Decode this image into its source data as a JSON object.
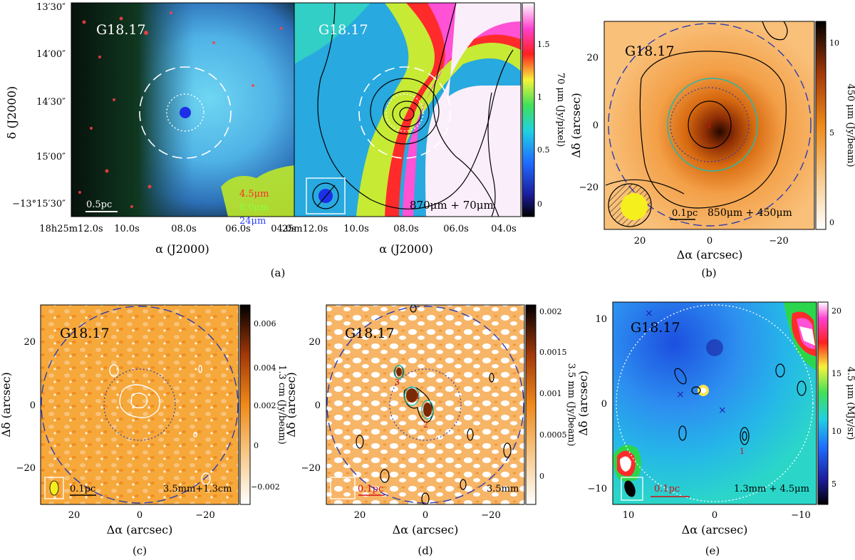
{
  "figure": {
    "panels": [
      {
        "id": "a",
        "caption": "(a)",
        "left_image": {
          "source_label": "G18.17",
          "bands": [
            "4.5μm",
            "8.0μm",
            "24μm"
          ],
          "band_colors": [
            "#ff2b2b",
            "#8cff3c",
            "#2b3dff"
          ],
          "scalebar": "0.5pc",
          "y_ticks": [
            "13′30″",
            "14′00″",
            "14′30″",
            "15′00″",
            "−13°15′30″"
          ],
          "x_ticks": [
            "18h25m12.0s",
            "10.0s",
            "08.0s",
            "06.0s",
            "04.0s"
          ],
          "ylabel": "δ (J2000)",
          "xlabel": "α (J2000)"
        },
        "right_image": {
          "source_label": "G18.17",
          "overlay_label": "870μm + 70μm",
          "x_ticks": [
            "25m12.0s",
            "10.0s",
            "08.0s",
            "06.0s",
            "04.0s"
          ],
          "colorbar_ticks": [
            "1.5",
            "1",
            "0.5",
            "0"
          ],
          "colorbar_label": "70 μm (Jy/pixel)"
        }
      },
      {
        "id": "b",
        "caption": "(b)",
        "source_label": "G18.17",
        "overlay_label": "850μm + 450μm",
        "scalebar": "0.1pc",
        "marker": "1",
        "x_ticks": [
          "20",
          "0",
          "−20"
        ],
        "y_ticks": [
          "20",
          "0",
          "−20"
        ],
        "xlabel": "Δα (arcsec)",
        "ylabel": "Δδ (arcsec)",
        "colorbar_ticks": [
          "10",
          "5",
          "0"
        ],
        "colorbar_label": "450 μm (Jy/beam)"
      },
      {
        "id": "c",
        "caption": "(c)",
        "source_label": "G18.17",
        "overlay_label": "3.5mm+1.3cm",
        "scalebar": "0.1pc",
        "x_ticks": [
          "20",
          "0",
          "−20"
        ],
        "y_ticks": [
          "20",
          "0",
          "−20"
        ],
        "xlabel": "Δα (arcsec)",
        "ylabel": "Δδ (arcsec)",
        "colorbar_ticks": [
          "0.006",
          "0.004",
          "0.002",
          "0",
          "−0.002"
        ],
        "colorbar_label": "1.3 cm (Jy/beam)"
      },
      {
        "id": "d",
        "caption": "(d)",
        "source_label": "G18.17",
        "overlay_label": "3.5mm",
        "scalebar": "0.1pc",
        "markers": [
          "1",
          "2",
          "3"
        ],
        "x_ticks": [
          "20",
          "0",
          "−20"
        ],
        "y_ticks": [
          "20",
          "0",
          "−20"
        ],
        "xlabel": "Δα (arcsec)",
        "ylabel": "Δδ (arcsec)",
        "colorbar_ticks": [
          "0.002",
          "0.0015",
          "0.001",
          "0.0005",
          "0"
        ],
        "colorbar_label": "3.5 mm (Jy/beam)"
      },
      {
        "id": "e",
        "caption": "(e)",
        "source_label": "G18.17",
        "overlay_label": "1.3mm + 4.5μm",
        "scalebar": "0.1pc",
        "marker": "1",
        "x_ticks": [
          "10",
          "0",
          "−10"
        ],
        "y_ticks": [
          "10",
          "0",
          "−10"
        ],
        "xlabel": "Δα (arcsec)",
        "ylabel": "Δδ (arcsec)",
        "colorbar_ticks": [
          "20",
          "15",
          "10",
          "5"
        ],
        "colorbar_label": "4.5 μm (MJy/sr)"
      }
    ]
  }
}
